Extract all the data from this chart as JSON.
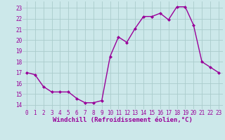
{
  "x": [
    0,
    1,
    2,
    3,
    4,
    5,
    6,
    7,
    8,
    9,
    10,
    11,
    12,
    13,
    14,
    15,
    16,
    17,
    18,
    19,
    20,
    21,
    22,
    23
  ],
  "y": [
    17.0,
    16.8,
    15.7,
    15.2,
    15.2,
    15.2,
    14.6,
    14.2,
    14.2,
    14.4,
    18.5,
    20.3,
    19.8,
    21.1,
    22.2,
    22.2,
    22.5,
    21.9,
    23.1,
    23.1,
    21.4,
    18.0,
    17.5,
    17.0
  ],
  "line_color": "#990099",
  "marker": "D",
  "marker_size": 2.0,
  "bg_color": "#cce8ea",
  "grid_color": "#aacccc",
  "xlabel": "Windchill (Refroidissement éolien,°C)",
  "xlabel_color": "#990099",
  "xlabel_fontsize": 6.5,
  "ylabel_ticks": [
    14,
    15,
    16,
    17,
    18,
    19,
    20,
    21,
    22,
    23
  ],
  "ytick_color": "#990099",
  "xtick_color": "#990099",
  "tick_fontsize": 5.5,
  "ylim": [
    13.6,
    23.6
  ],
  "xlim": [
    -0.5,
    23.5
  ],
  "line_width": 1.0
}
